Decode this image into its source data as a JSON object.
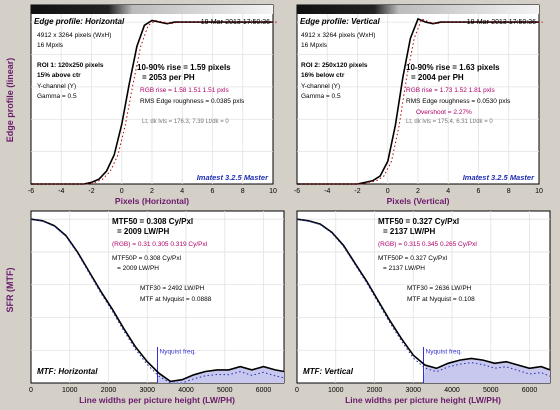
{
  "ylabel_top": "Edge profile (linear)",
  "ylabel_bottom": "SFR (MTF)",
  "chart_data": [
    {
      "type": "line",
      "panel": "edge-horizontal",
      "title": "Edge profile: Horizontal",
      "date": "19-Mar-2013 17:50:36",
      "info_lines": [
        "4912 x 3264 pixels (WxH)",
        "16 Mpxls",
        "ROI 1: 120x250 pixels",
        "15% above ctr",
        "Y-channel  (Y)",
        "Gamma = 0.5"
      ],
      "rise_lines": [
        "10-90% rise = 1.59 pixels",
        "= 2053 per PH"
      ],
      "rgb_rise": "RGB rise = 1.58  1.51  1.51 pxls",
      "rms": "RMS Edge roughness = 0.0385 pxls",
      "overshoot": "",
      "levels": "Lt, dk lvls = 176.3, 7.39   Lt/dk = 0",
      "brand": "Imatest 3.2.5 Master",
      "xlabel": "Pixels (Horizontal)",
      "xticks": [
        -6,
        -4,
        -2,
        0,
        2,
        4,
        6,
        8,
        10
      ],
      "xlim": [
        -6,
        10
      ],
      "ylim": [
        0,
        1.05
      ],
      "x": [
        -6,
        -2.5,
        -2.0,
        -1.5,
        -1.0,
        -0.5,
        0,
        0.5,
        1.0,
        1.5,
        2.0,
        2.5,
        3.0,
        3.5,
        4,
        6,
        8,
        10
      ],
      "y": [
        0.0,
        0.0,
        0.01,
        0.03,
        0.08,
        0.18,
        0.37,
        0.62,
        0.85,
        0.98,
        1.01,
        1.0,
        0.99,
        1.0,
        1.0,
        1.0,
        1.0,
        1.0
      ]
    },
    {
      "type": "line",
      "panel": "edge-vertical",
      "title": "Edge profile: Vertical",
      "date": "19-Mar-2013 17:50:36",
      "info_lines": [
        "4912 x 3264 pixels (WxH)",
        "16 Mpxls",
        "ROI 2: 250x120 pixels",
        "16% below ctr",
        "Y-channel  (Y)",
        "Gamma = 0.5"
      ],
      "rise_lines": [
        "10-90% rise = 1.63 pixels",
        "= 2004 per PH"
      ],
      "rgb_rise": "RGB rise = 1.73  1.52  1.81 pxls",
      "rms": "RMS Edge roughness = 0.0530 pxls",
      "overshoot": "Overshoot = 2.27%",
      "levels": "Lt, dk lvls = 175.4, 6.31   Lt/dk = 0",
      "brand": "Imatest 3.2.5 Master",
      "xlabel": "Pixels (Vertical)",
      "xticks": [
        -6,
        -4,
        -2,
        0,
        2,
        4,
        6,
        8,
        10
      ],
      "xlim": [
        -6,
        10
      ],
      "ylim": [
        0,
        1.05
      ],
      "x": [
        -6,
        -2.0,
        -1.5,
        -1.0,
        -0.5,
        0,
        0.5,
        1.0,
        1.5,
        2.0,
        2.5,
        3.0,
        3.5,
        4,
        6,
        8,
        10
      ],
      "y": [
        0.0,
        0.0,
        0.01,
        0.02,
        0.05,
        0.14,
        0.36,
        0.66,
        0.9,
        1.02,
        1.0,
        0.99,
        1.0,
        1.0,
        1.0,
        1.0,
        1.0
      ]
    },
    {
      "type": "line",
      "panel": "mtf-horizontal",
      "title": "MTF: Horizontal",
      "mtf50_lines": [
        "MTF50 = 0.308 Cy/Pxl",
        "= 2009 LW/PH"
      ],
      "rgb_note": "(RGB) = 0.31   0.305  0.319 Cy/Pxl",
      "mtf50p_lines": [
        "MTF50P = 0.308 Cy/Pxl",
        "= 2009 LW/PH"
      ],
      "mtf30": "MTF30 = 2492 LW/PH",
      "nyq_value": "MTF at Nyquist = 0.0888",
      "nyquist_label": "Nyquist freq.",
      "nyquist_x": 3264,
      "xlabel": "Line widths per picture height (LW/PH)",
      "xticks": [
        0,
        1000,
        2000,
        3000,
        4000,
        5000,
        6000
      ],
      "xlim": [
        0,
        6528
      ],
      "ylim": [
        0,
        1.05
      ],
      "x": [
        0,
        300,
        600,
        900,
        1200,
        1500,
        1800,
        2100,
        2400,
        2700,
        3000,
        3300,
        3600,
        3900,
        4200,
        4500,
        4800,
        5100,
        5400,
        5700,
        6000,
        6300,
        6528
      ],
      "y": [
        1.0,
        0.99,
        0.96,
        0.9,
        0.8,
        0.68,
        0.56,
        0.45,
        0.33,
        0.22,
        0.13,
        0.06,
        0.01,
        0.02,
        0.05,
        0.07,
        0.08,
        0.08,
        0.1,
        0.08,
        0.1,
        0.08,
        0.07
      ]
    },
    {
      "type": "line",
      "panel": "mtf-vertical",
      "title": "MTF: Vertical",
      "mtf50_lines": [
        "MTF50 = 0.327 Cy/Pxl",
        "= 2137 LW/PH"
      ],
      "rgb_note": "(RGB) = 0.315  0.345  0.265 Cy/Pxl",
      "mtf50p_lines": [
        "MTF50P = 0.327 Cy/Pxl",
        "= 2137 LW/PH"
      ],
      "mtf30": "MTF30 = 2636 LW/PH",
      "nyq_value": "MTF at Nyquist = 0.108",
      "nyquist_label": "Nyquist freq.",
      "nyquist_x": 3264,
      "xlabel": "Line widths per picture height (LW/PH)",
      "xticks": [
        0,
        1000,
        2000,
        3000,
        4000,
        5000,
        6000
      ],
      "xlim": [
        0,
        6528
      ],
      "ylim": [
        0,
        1.05
      ],
      "x": [
        0,
        300,
        600,
        900,
        1200,
        1500,
        1800,
        2100,
        2400,
        2700,
        3000,
        3300,
        3600,
        3900,
        4200,
        4500,
        4800,
        5100,
        5400,
        5700,
        6000,
        6300,
        6528
      ],
      "y": [
        1.0,
        0.99,
        0.97,
        0.92,
        0.84,
        0.73,
        0.62,
        0.5,
        0.38,
        0.27,
        0.17,
        0.11,
        0.09,
        0.12,
        0.14,
        0.15,
        0.14,
        0.12,
        0.13,
        0.11,
        0.09,
        0.1,
        0.08
      ]
    }
  ]
}
